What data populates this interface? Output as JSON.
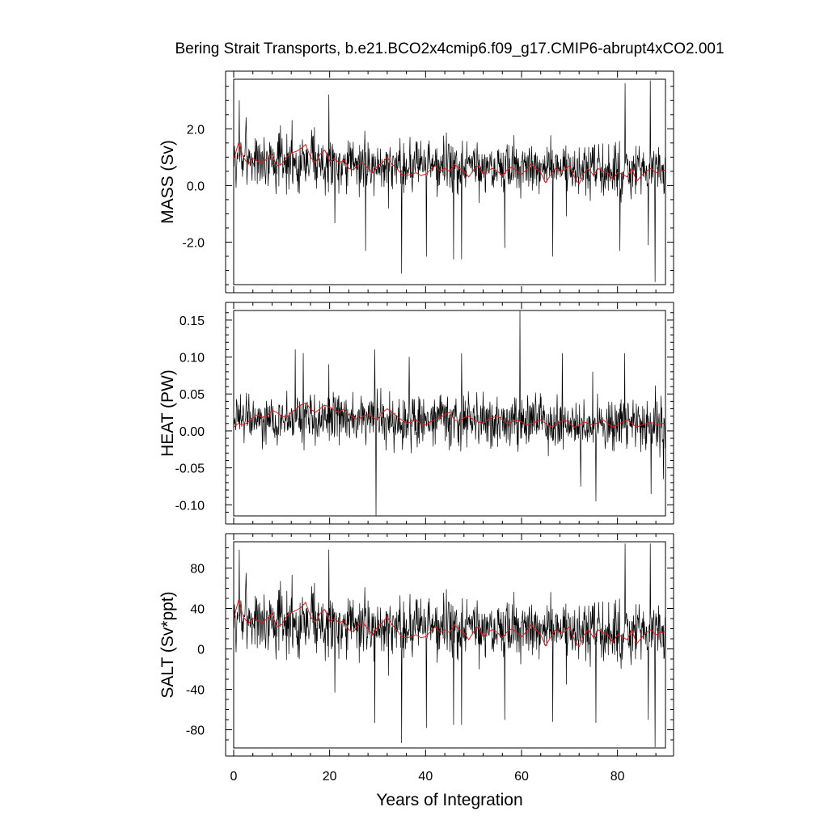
{
  "title": "Bering Strait Transports, b.e21.BCO2x4cmip6.f09_g17.CMIP6-abrupt4xCO2.001",
  "xlabel": "Years of Integration",
  "colors": {
    "monthly": "#000000",
    "annual": "#e41a1c",
    "axes": "#000000"
  },
  "chart_data": [
    {
      "type": "line",
      "panel": "mass",
      "ylabel": "MASS (Sv)",
      "xlim": [
        0,
        90
      ],
      "ylim": [
        -3.5,
        3.75
      ],
      "xticks": [
        0,
        20,
        40,
        60,
        80
      ],
      "xtick_labels": [
        "0",
        "20",
        "40",
        "60",
        "80"
      ],
      "yticks": [
        -2.0,
        0.0,
        2.0
      ],
      "ytick_labels": [
        "-2.0",
        "0.0",
        "2.0"
      ],
      "yminor_step": 0.5,
      "series": [
        {
          "name": "monthly",
          "samples_per_year": 12,
          "base": 0.9,
          "trend": -0.45,
          "amplitude": 0.75,
          "seed": 7,
          "spikes": [
            [
              1.2,
              3.0
            ],
            [
              2.6,
              2.4
            ],
            [
              12.2,
              2.3
            ],
            [
              19.8,
              3.2
            ],
            [
              27.5,
              -2.3
            ],
            [
              35.0,
              -3.1
            ],
            [
              40.2,
              -2.5
            ],
            [
              45.8,
              -2.6
            ],
            [
              47.5,
              -2.6
            ],
            [
              56.5,
              -2.2
            ],
            [
              66.5,
              -2.5
            ],
            [
              80.5,
              -2.3
            ],
            [
              81.6,
              3.6
            ],
            [
              86.8,
              3.7
            ],
            [
              87.8,
              -3.4
            ],
            [
              86.4,
              -2.1
            ]
          ]
        },
        {
          "name": "annual",
          "samples_per_year": 1,
          "values": [
            0.9,
            1.5,
            1.0,
            0.75,
            0.95,
            0.85,
            0.8,
            0.95,
            1.1,
            0.7,
            0.75,
            1.0,
            1.15,
            1.2,
            1.3,
            1.45,
            1.0,
            0.8,
            1.1,
            1.25,
            0.85,
            0.95,
            0.8,
            0.9,
            0.6,
            0.55,
            0.75,
            0.8,
            0.6,
            0.45,
            0.7,
            0.8,
            1.0,
            0.75,
            0.6,
            0.4,
            0.35,
            0.4,
            0.45,
            0.35,
            0.4,
            0.55,
            0.7,
            0.5,
            0.6,
            0.5,
            0.75,
            0.6,
            0.5,
            0.3,
            0.55,
            0.7,
            0.4,
            0.55,
            0.6,
            0.5,
            0.35,
            0.55,
            0.65,
            0.5,
            0.4,
            0.55,
            0.75,
            0.6,
            0.45,
            0.1,
            0.35,
            0.6,
            0.5,
            0.55,
            0.7,
            0.3,
            0.05,
            0.45,
            0.6,
            0.35,
            0.6,
            0.5,
            0.45,
            0.2,
            0.45,
            0.4,
            0.3,
            0.6,
            0.15,
            0.35,
            0.5,
            0.6,
            0.45,
            0.5,
            0.55
          ]
        }
      ]
    },
    {
      "type": "line",
      "panel": "heat",
      "ylabel": "HEAT (PW)",
      "xlim": [
        0,
        90
      ],
      "ylim": [
        -0.115,
        0.163
      ],
      "xticks": [
        0,
        20,
        40,
        60,
        80
      ],
      "xtick_labels": [
        "0",
        "20",
        "40",
        "60",
        "80"
      ],
      "yticks": [
        -0.1,
        -0.05,
        0.0,
        0.05,
        0.1,
        0.15
      ],
      "ytick_labels": [
        "-0.10",
        "-0.05",
        "0.00",
        "0.05",
        "0.10",
        "0.15"
      ],
      "yminor_step": 0.01,
      "series": [
        {
          "name": "monthly",
          "samples_per_year": 12,
          "base": 0.018,
          "trend": -0.008,
          "amplitude": 0.028,
          "seed": 19,
          "spikes": [
            [
              12.8,
              0.11
            ],
            [
              14.5,
              0.105
            ],
            [
              19.8,
              0.09
            ],
            [
              29.4,
              0.11
            ],
            [
              29.7,
              -0.115
            ],
            [
              36.6,
              0.1
            ],
            [
              47.5,
              0.105
            ],
            [
              59.7,
              0.162
            ],
            [
              68.5,
              0.105
            ],
            [
              72.3,
              -0.075
            ],
            [
              75.5,
              -0.095
            ],
            [
              81.5,
              0.105
            ],
            [
              87.0,
              -0.085
            ],
            [
              89.6,
              -0.065
            ]
          ]
        },
        {
          "name": "annual",
          "samples_per_year": 1,
          "values": [
            0.005,
            0.01,
            0.008,
            0.012,
            0.018,
            0.022,
            0.018,
            0.02,
            0.028,
            0.025,
            0.02,
            0.018,
            0.025,
            0.03,
            0.035,
            0.038,
            0.03,
            0.025,
            0.03,
            0.035,
            0.032,
            0.028,
            0.025,
            0.03,
            0.022,
            0.018,
            0.015,
            0.02,
            0.022,
            0.018,
            0.015,
            0.025,
            0.03,
            0.025,
            0.02,
            0.015,
            0.01,
            0.012,
            0.015,
            0.01,
            0.008,
            0.012,
            0.015,
            0.018,
            0.022,
            0.025,
            0.015,
            0.012,
            0.018,
            0.02,
            0.015,
            0.012,
            0.01,
            0.015,
            0.018,
            0.02,
            0.015,
            0.01,
            0.012,
            0.015,
            0.012,
            0.008,
            0.01,
            0.012,
            0.015,
            0.01,
            0.005,
            0.008,
            0.012,
            0.015,
            0.01,
            0.005,
            0.008,
            0.012,
            0.01,
            0.008,
            0.012,
            0.015,
            0.01,
            0.005,
            0.008,
            0.012,
            0.015,
            0.01,
            0.005,
            0.008,
            0.01,
            0.012,
            0.008,
            0.01,
            0.01
          ]
        }
      ]
    },
    {
      "type": "line",
      "panel": "salt",
      "ylabel": "SALT (Sv*ppt)",
      "xlim": [
        0,
        90
      ],
      "ylim": [
        -98,
        106
      ],
      "xticks": [
        0,
        20,
        40,
        60,
        80
      ],
      "xtick_labels": [
        "0",
        "20",
        "40",
        "60",
        "80"
      ],
      "yticks": [
        -80,
        -40,
        0,
        40,
        80
      ],
      "ytick_labels": [
        "-80",
        "-40",
        "0",
        "40",
        "80"
      ],
      "yminor_step": 10,
      "series": [
        {
          "name": "monthly",
          "samples_per_year": 12,
          "base": 28,
          "trend": -14,
          "amplitude": 24,
          "seed": 7,
          "spikes": [
            [
              1.2,
              98
            ],
            [
              2.6,
              75
            ],
            [
              12.2,
              73
            ],
            [
              19.8,
              98
            ],
            [
              29.4,
              -73
            ],
            [
              35.0,
              -93
            ],
            [
              40.2,
              -78
            ],
            [
              45.8,
              -75
            ],
            [
              47.5,
              -75
            ],
            [
              56.5,
              -70
            ],
            [
              66.5,
              -72
            ],
            [
              75.5,
              -73
            ],
            [
              81.6,
              104
            ],
            [
              86.8,
              104
            ],
            [
              87.8,
              -97
            ],
            [
              86.4,
              -70
            ]
          ]
        },
        {
          "name": "annual",
          "samples_per_year": 1,
          "values": [
            30,
            48,
            32,
            25,
            30,
            28,
            26,
            30,
            35,
            22,
            24,
            32,
            36,
            38,
            41,
            46,
            32,
            26,
            35,
            39,
            27,
            30,
            26,
            28,
            19,
            17,
            24,
            26,
            19,
            14,
            22,
            26,
            32,
            24,
            19,
            12,
            11,
            12,
            14,
            11,
            12,
            17,
            22,
            16,
            19,
            16,
            24,
            19,
            16,
            9,
            17,
            22,
            12,
            17,
            19,
            16,
            11,
            17,
            20,
            16,
            12,
            17,
            24,
            19,
            14,
            3,
            11,
            19,
            16,
            17,
            22,
            9,
            2,
            14,
            19,
            11,
            19,
            16,
            14,
            6,
            14,
            12,
            9,
            19,
            5,
            11,
            16,
            19,
            14,
            16,
            17
          ]
        }
      ]
    }
  ]
}
